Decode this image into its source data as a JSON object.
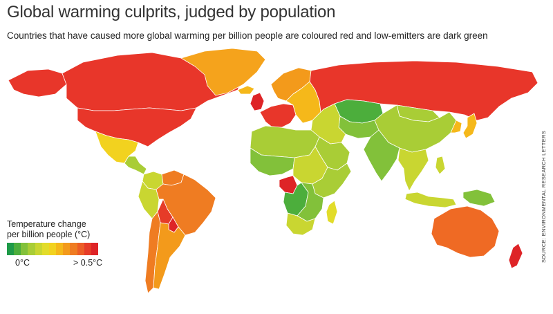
{
  "header": {
    "title": "Global warming culprits, judged by population",
    "subtitle": "Countries that have caused more global warming per billion people are coloured red and low-emitters are dark green"
  },
  "legend": {
    "title_line1": "Temperature change",
    "title_line2": "per billion people (°C)",
    "min_label": "0°C",
    "max_label": "> 0.5°C",
    "scale": [
      "#1e9a48",
      "#4cae3c",
      "#82c13a",
      "#a9cd36",
      "#c9d631",
      "#e2dc2a",
      "#f2d21f",
      "#f5b81a",
      "#f39a1b",
      "#ef7c22",
      "#ec5d26",
      "#e63c28",
      "#de2427"
    ]
  },
  "source": "SOURCE: ENVIRONMENTAL RESEARCH LETTERS",
  "regions": [
    {
      "name": "canada",
      "color": "#e8362a"
    },
    {
      "name": "usa",
      "color": "#e8362a"
    },
    {
      "name": "alaska",
      "color": "#e8362a"
    },
    {
      "name": "greenland",
      "color": "#f5a31c"
    },
    {
      "name": "mexico",
      "color": "#f2d21f"
    },
    {
      "name": "central-america",
      "color": "#a9cd36"
    },
    {
      "name": "venezuela",
      "color": "#ef7c22"
    },
    {
      "name": "colombia",
      "color": "#c9d631"
    },
    {
      "name": "peru",
      "color": "#c9d631"
    },
    {
      "name": "brazil",
      "color": "#ef7c22"
    },
    {
      "name": "bolivia",
      "color": "#e63c28"
    },
    {
      "name": "paraguay",
      "color": "#de2427"
    },
    {
      "name": "argentina",
      "color": "#f39a1b"
    },
    {
      "name": "chile",
      "color": "#ef7c22"
    },
    {
      "name": "uk",
      "color": "#de2427"
    },
    {
      "name": "scandinavia",
      "color": "#f39a1b"
    },
    {
      "name": "western-europe",
      "color": "#e8362a"
    },
    {
      "name": "eastern-europe",
      "color": "#f5b81a"
    },
    {
      "name": "russia",
      "color": "#e8362a"
    },
    {
      "name": "kazakhstan",
      "color": "#4cae3c"
    },
    {
      "name": "central-asia",
      "color": "#82c13a"
    },
    {
      "name": "middle-east",
      "color": "#c9d631"
    },
    {
      "name": "arabian-peninsula",
      "color": "#a9cd36"
    },
    {
      "name": "china",
      "color": "#a9cd36"
    },
    {
      "name": "mongolia",
      "color": "#a9cd36"
    },
    {
      "name": "india",
      "color": "#82c13a"
    },
    {
      "name": "southeast-asia",
      "color": "#c9d631"
    },
    {
      "name": "japan",
      "color": "#f5b81a"
    },
    {
      "name": "korea",
      "color": "#f5b81a"
    },
    {
      "name": "north-africa",
      "color": "#a9cd36"
    },
    {
      "name": "west-africa",
      "color": "#82c13a"
    },
    {
      "name": "central-africa",
      "color": "#c9d631"
    },
    {
      "name": "congo",
      "color": "#de2427"
    },
    {
      "name": "east-africa",
      "color": "#a9cd36"
    },
    {
      "name": "southern-africa",
      "color": "#82c13a"
    },
    {
      "name": "angola",
      "color": "#4cae3c"
    },
    {
      "name": "south-africa",
      "color": "#c9d631"
    },
    {
      "name": "madagascar",
      "color": "#e2dc2a"
    },
    {
      "name": "indonesia",
      "color": "#c9d631"
    },
    {
      "name": "new-guinea",
      "color": "#82c13a"
    },
    {
      "name": "australia",
      "color": "#ef6a24"
    },
    {
      "name": "new-zealand",
      "color": "#de2427"
    },
    {
      "name": "philippines",
      "color": "#c9d631"
    },
    {
      "name": "iceland",
      "color": "#f5b81a"
    }
  ]
}
